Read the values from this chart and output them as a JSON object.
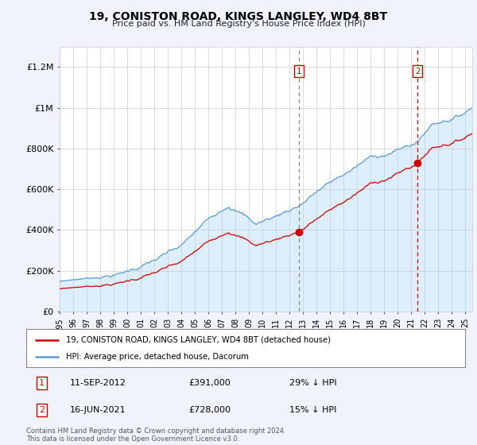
{
  "title": "19, CONISTON ROAD, KINGS LANGLEY, WD4 8BT",
  "subtitle": "Price paid vs. HM Land Registry's House Price Index (HPI)",
  "legend_line1": "19, CONISTON ROAD, KINGS LANGLEY, WD4 8BT (detached house)",
  "legend_line2": "HPI: Average price, detached house, Dacorum",
  "footnote": "Contains HM Land Registry data © Crown copyright and database right 2024.\nThis data is licensed under the Open Government Licence v3.0.",
  "annotation1": {
    "label": "1",
    "date": "11-SEP-2012",
    "price": "£391,000",
    "pct": "29% ↓ HPI",
    "x_year": 2012.7
  },
  "annotation2": {
    "label": "2",
    "date": "16-JUN-2021",
    "price": "£728,000",
    "pct": "15% ↓ HPI",
    "x_year": 2021.45
  },
  "sale1_x": 2012.7,
  "sale1_y": 391000,
  "sale2_x": 2021.45,
  "sale2_y": 728000,
  "hpi_color": "#5b9bd5",
  "hpi_fill_color": "#ddeeff",
  "price_color": "#cc0000",
  "background_color": "#f0f4fa",
  "plot_bg_color": "#ffffff",
  "ylim": [
    0,
    1300000
  ],
  "xlim_start": 1995.0,
  "xlim_end": 2025.5,
  "yticks": [
    0,
    200000,
    400000,
    600000,
    800000,
    1000000,
    1200000
  ],
  "ytick_labels": [
    "£0",
    "£200K",
    "£400K",
    "£600K",
    "£800K",
    "£1M",
    "£1.2M"
  ],
  "xtick_years": [
    1995,
    1996,
    1997,
    1998,
    1999,
    2000,
    2001,
    2002,
    2003,
    2004,
    2005,
    2006,
    2007,
    2008,
    2009,
    2010,
    2011,
    2012,
    2013,
    2014,
    2015,
    2016,
    2017,
    2018,
    2019,
    2020,
    2021,
    2022,
    2023,
    2024,
    2025
  ]
}
